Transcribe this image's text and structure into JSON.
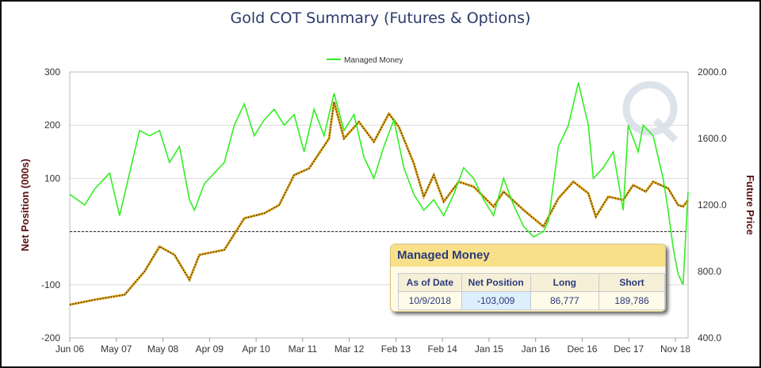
{
  "chart_data": {
    "type": "line",
    "title": "Gold COT Summary (Futures & Options)",
    "ylabel": "Net Position (000s)",
    "y2label": "Future Price",
    "ylim": [
      -200,
      300
    ],
    "y2lim": [
      400,
      2000
    ],
    "yticks": [
      "300",
      "200",
      "100",
      "",
      "-100",
      "-200"
    ],
    "y2ticks": [
      "2000.0",
      "1600.0",
      "1200.0",
      "800.0",
      "400.0"
    ],
    "xticks": [
      "Jun 06",
      "May 07",
      "May 08",
      "Apr 09",
      "Apr 10",
      "Mar 11",
      "Mar 12",
      "Feb 13",
      "Feb 14",
      "Jan 15",
      "Jan 16",
      "Dec 16",
      "Dec 17",
      "Nov 18"
    ],
    "grid": true,
    "legend": "top-center",
    "zero_line": "dashed",
    "series": [
      {
        "name": "Managed Money",
        "axis": "left",
        "color": "#33ee22",
        "x": [
          2006.4,
          2006.7,
          2006.9,
          2007.2,
          2007.4,
          2007.6,
          2007.8,
          2008.0,
          2008.2,
          2008.4,
          2008.6,
          2008.8,
          2008.9,
          2009.1,
          2009.3,
          2009.5,
          2009.7,
          2009.9,
          2010.1,
          2010.3,
          2010.5,
          2010.7,
          2010.9,
          2011.1,
          2011.3,
          2011.5,
          2011.7,
          2011.9,
          2012.1,
          2012.3,
          2012.5,
          2012.7,
          2012.9,
          2013.1,
          2013.3,
          2013.5,
          2013.7,
          2013.9,
          2014.1,
          2014.3,
          2014.5,
          2014.7,
          2014.9,
          2015.1,
          2015.3,
          2015.5,
          2015.7,
          2015.9,
          2016.0,
          2016.2,
          2016.4,
          2016.6,
          2016.8,
          2016.9,
          2017.1,
          2017.3,
          2017.5,
          2017.6,
          2017.8,
          2017.9,
          2018.1,
          2018.3,
          2018.4,
          2018.5,
          2018.6,
          2018.7,
          2018.8
        ],
        "values": [
          70,
          50,
          80,
          110,
          30,
          110,
          190,
          180,
          190,
          130,
          160,
          60,
          40,
          90,
          110,
          130,
          200,
          240,
          180,
          210,
          230,
          200,
          220,
          150,
          230,
          180,
          260,
          190,
          220,
          140,
          100,
          160,
          210,
          120,
          70,
          40,
          60,
          30,
          70,
          120,
          100,
          60,
          30,
          100,
          50,
          10,
          -10,
          0,
          20,
          160,
          200,
          280,
          200,
          100,
          120,
          150,
          40,
          200,
          150,
          200,
          180,
          100,
          40,
          -30,
          -80,
          -100,
          75
        ]
      },
      {
        "axis": "right",
        "color": "#e6a817",
        "x": [
          2006.4,
          2006.9,
          2007.5,
          2007.9,
          2008.2,
          2008.5,
          2008.8,
          2009.0,
          2009.5,
          2009.9,
          2010.3,
          2010.6,
          2010.9,
          2011.2,
          2011.6,
          2011.7,
          2011.9,
          2012.2,
          2012.5,
          2012.8,
          2013.0,
          2013.3,
          2013.5,
          2013.7,
          2013.9,
          2014.2,
          2014.5,
          2014.9,
          2015.1,
          2015.5,
          2015.9,
          2016.2,
          2016.5,
          2016.8,
          2016.95,
          2017.2,
          2017.5,
          2017.7,
          2017.95,
          2018.1,
          2018.4,
          2018.6,
          2018.7,
          2018.8
        ],
        "values": [
          600,
          630,
          660,
          800,
          950,
          900,
          750,
          900,
          930,
          1120,
          1150,
          1200,
          1380,
          1420,
          1600,
          1820,
          1600,
          1700,
          1580,
          1750,
          1670,
          1450,
          1250,
          1380,
          1220,
          1340,
          1310,
          1190,
          1280,
          1170,
          1070,
          1240,
          1340,
          1270,
          1130,
          1250,
          1230,
          1320,
          1280,
          1340,
          1300,
          1200,
          1190,
          1230
        ]
      }
    ]
  },
  "tooltip": {
    "title": "Managed Money",
    "headers": [
      "As of Date",
      "Net Position",
      "Long",
      "Short"
    ],
    "values": [
      "10/9/2018",
      "-103,009",
      "86,777",
      "189,786"
    ]
  }
}
